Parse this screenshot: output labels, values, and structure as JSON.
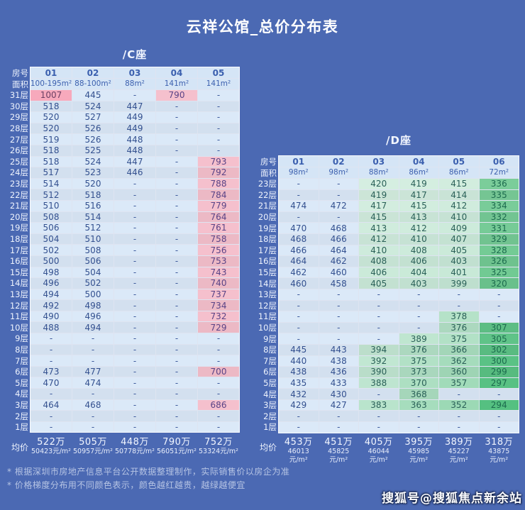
{
  "title": "云祥公馆_总价分布表",
  "labels": {
    "room_no": "房号",
    "area": "面积",
    "floor_suffix": "层",
    "average": "均价",
    "dash": "-"
  },
  "colors": {
    "background": "#4b69b3",
    "header_bg": "#d5e5f6",
    "header_text": "#3b5fae",
    "cell_blue": "#dbe9f8",
    "cell_pink": "#f5c0cd",
    "cell_pink_strong": "#f7a9bc",
    "cell_green_deep": "#55c081",
    "cell_mint_light": "#d8efe3",
    "value_text": "#33508f",
    "mint_text": "#2a6058",
    "green_text": "#1c6b4e",
    "pink_text": "#5a4386",
    "pink_strong_text": "#6b3f63",
    "dash_text": "#3d5a9c",
    "label_text": "#eef3fd"
  },
  "chart_data": [
    {
      "type": "heatmap",
      "title": "/C座",
      "columns": [
        "01",
        "02",
        "03",
        "04",
        "05"
      ],
      "areas": [
        "100-195m²",
        "88-100m²",
        "88m²",
        "141m²",
        "141m²"
      ],
      "floors": [
        31,
        30,
        29,
        28,
        27,
        26,
        25,
        24,
        23,
        22,
        21,
        20,
        19,
        18,
        17,
        16,
        15,
        14,
        13,
        12,
        11,
        10,
        9,
        8,
        7,
        6,
        5,
        4,
        3,
        2,
        1
      ],
      "values": [
        [
          1007,
          445,
          null,
          790,
          null
        ],
        [
          518,
          524,
          447,
          null,
          null
        ],
        [
          520,
          527,
          449,
          null,
          null
        ],
        [
          520,
          526,
          449,
          null,
          null
        ],
        [
          519,
          526,
          448,
          null,
          null
        ],
        [
          518,
          525,
          448,
          null,
          null
        ],
        [
          518,
          524,
          447,
          null,
          793
        ],
        [
          517,
          523,
          446,
          null,
          792
        ],
        [
          514,
          520,
          null,
          null,
          788
        ],
        [
          512,
          518,
          null,
          null,
          784
        ],
        [
          510,
          516,
          null,
          null,
          779
        ],
        [
          508,
          514,
          null,
          null,
          764
        ],
        [
          506,
          512,
          null,
          null,
          761
        ],
        [
          504,
          510,
          null,
          null,
          758
        ],
        [
          502,
          508,
          null,
          null,
          756
        ],
        [
          500,
          506,
          null,
          null,
          753
        ],
        [
          498,
          504,
          null,
          null,
          743
        ],
        [
          496,
          502,
          null,
          null,
          740
        ],
        [
          494,
          500,
          null,
          null,
          737
        ],
        [
          492,
          498,
          null,
          null,
          734
        ],
        [
          490,
          496,
          null,
          null,
          732
        ],
        [
          488,
          494,
          null,
          null,
          729
        ],
        [
          null,
          null,
          null,
          null,
          null
        ],
        [
          null,
          null,
          null,
          null,
          null
        ],
        [
          null,
          null,
          null,
          null,
          null
        ],
        [
          473,
          477,
          null,
          null,
          700
        ],
        [
          470,
          474,
          null,
          null,
          null
        ],
        [
          null,
          null,
          null,
          null,
          null
        ],
        [
          464,
          468,
          null,
          null,
          686
        ],
        [
          null,
          null,
          null,
          null,
          null
        ],
        [
          null,
          null,
          null,
          null,
          null
        ]
      ],
      "avg_totals": [
        "522万",
        "505万",
        "448万",
        "790万",
        "752万"
      ],
      "avg_units": [
        "50423元/m²",
        "50957元/m²",
        "50778元/m²",
        "56051元/m²",
        "53324元/m²"
      ]
    },
    {
      "type": "heatmap",
      "title": "/D座",
      "columns": [
        "01",
        "02",
        "03",
        "04",
        "05",
        "06"
      ],
      "areas": [
        "98m²",
        "98m²",
        "88m²",
        "86m²",
        "86m²",
        "72m²"
      ],
      "floors": [
        23,
        22,
        21,
        20,
        19,
        18,
        17,
        16,
        15,
        14,
        13,
        12,
        11,
        10,
        9,
        8,
        7,
        6,
        5,
        4,
        3,
        2,
        1
      ],
      "values": [
        [
          null,
          null,
          420,
          419,
          415,
          336
        ],
        [
          null,
          null,
          419,
          417,
          414,
          335
        ],
        [
          474,
          472,
          417,
          415,
          412,
          334
        ],
        [
          null,
          null,
          415,
          413,
          410,
          332
        ],
        [
          470,
          468,
          413,
          412,
          409,
          331
        ],
        [
          468,
          466,
          412,
          410,
          407,
          329
        ],
        [
          466,
          464,
          410,
          408,
          405,
          328
        ],
        [
          464,
          462,
          408,
          406,
          403,
          326
        ],
        [
          462,
          460,
          406,
          404,
          401,
          325
        ],
        [
          460,
          458,
          405,
          403,
          399,
          320
        ],
        [
          null,
          null,
          null,
          null,
          null,
          null
        ],
        [
          null,
          null,
          null,
          null,
          null,
          null
        ],
        [
          null,
          null,
          null,
          null,
          378,
          null
        ],
        [
          null,
          null,
          null,
          null,
          376,
          307
        ],
        [
          null,
          null,
          null,
          389,
          375,
          305
        ],
        [
          445,
          443,
          394,
          376,
          366,
          302
        ],
        [
          440,
          438,
          392,
          375,
          362,
          300
        ],
        [
          438,
          436,
          390,
          373,
          360,
          299
        ],
        [
          435,
          433,
          388,
          370,
          357,
          297
        ],
        [
          432,
          430,
          null,
          368,
          null,
          null
        ],
        [
          429,
          427,
          383,
          363,
          352,
          294
        ],
        [
          null,
          null,
          null,
          null,
          null,
          null
        ],
        [
          null,
          null,
          null,
          null,
          null,
          null
        ]
      ],
      "avg_totals": [
        "453万",
        "451万",
        "405万",
        "395万",
        "389万",
        "318万"
      ],
      "avg_units": [
        "46013元/m²",
        "45825元/m²",
        "46044元/m²",
        "45985元/m²",
        "45227元/m²",
        "43875元/m²"
      ]
    }
  ],
  "footnotes": [
    "* 根据深圳市房地产信息平台公开数据整理制作，实际销售价以房企为准",
    "* 价格梯度分布用不同颜色表示，颜色越红越贵，越绿越便宜"
  ],
  "watermark": "搜狐号@搜狐焦点新余站"
}
